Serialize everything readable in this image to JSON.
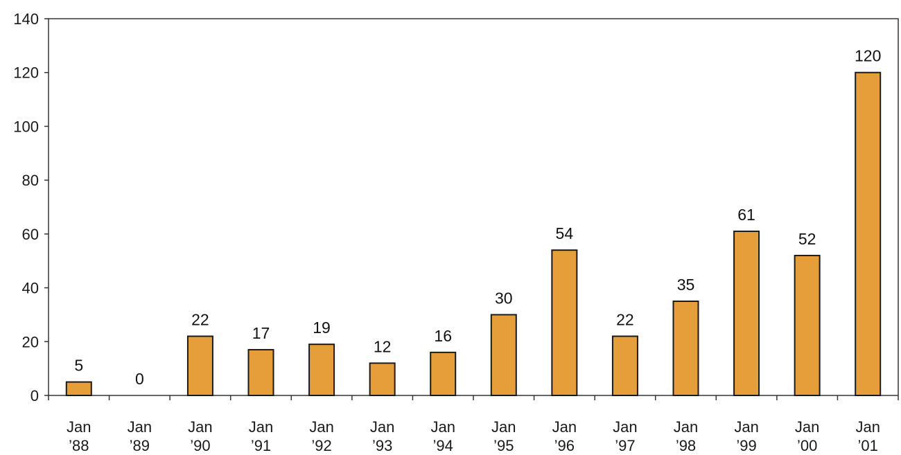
{
  "chart_data": {
    "type": "bar",
    "categories": [
      [
        "Jan",
        "’88"
      ],
      [
        "Jan",
        "’89"
      ],
      [
        "Jan",
        "’90"
      ],
      [
        "Jan",
        "’91"
      ],
      [
        "Jan",
        "’92"
      ],
      [
        "Jan",
        "’93"
      ],
      [
        "Jan",
        "’94"
      ],
      [
        "Jan",
        "’95"
      ],
      [
        "Jan",
        "’96"
      ],
      [
        "Jan",
        "’97"
      ],
      [
        "Jan",
        "’98"
      ],
      [
        "Jan",
        "’99"
      ],
      [
        "Jan",
        "’00"
      ],
      [
        "Jan",
        "’01"
      ]
    ],
    "values": [
      5,
      0,
      22,
      17,
      19,
      12,
      16,
      30,
      54,
      22,
      35,
      61,
      52,
      120
    ],
    "data_labels": [
      "5",
      "0",
      "22",
      "17",
      "19",
      "12",
      "16",
      "30",
      "54",
      "22",
      "35",
      "61",
      "52",
      "120"
    ],
    "yticks": [
      0,
      20,
      40,
      60,
      80,
      100,
      120,
      140
    ],
    "ylim": [
      0,
      140
    ],
    "title": "",
    "xlabel": "",
    "ylabel": "",
    "grid": false,
    "legend": "none",
    "colors": {
      "bar_fill": "#E59E3A",
      "bar_stroke": "#1a1a1a",
      "axis": "#333333"
    }
  }
}
